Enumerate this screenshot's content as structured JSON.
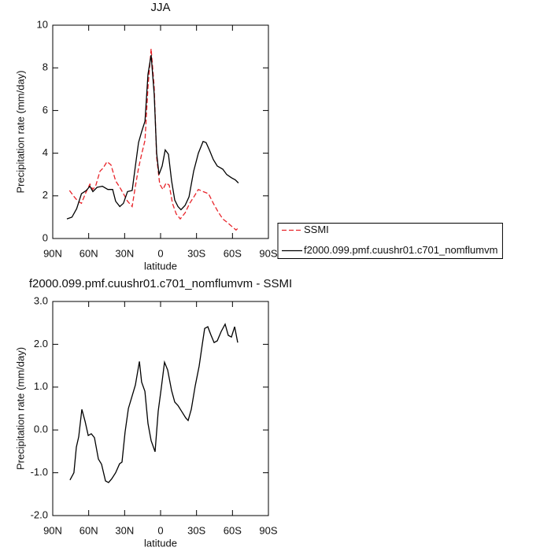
{
  "chart_data": [
    {
      "type": "line",
      "title": "JJA",
      "x_label": "latitude",
      "y_label": "Precipitation rate (mm/day)",
      "xlim": [
        90,
        -90
      ],
      "xticks": [
        {
          "value": 90,
          "label": "90N"
        },
        {
          "value": 60,
          "label": "60N"
        },
        {
          "value": 30,
          "label": "30N"
        },
        0,
        {
          "value": -30,
          "label": "30S"
        },
        {
          "value": -60,
          "label": "60S"
        },
        {
          "value": -90,
          "label": "90S"
        }
      ],
      "ylim": [
        0,
        10
      ],
      "yticks": [
        0,
        2,
        4,
        6,
        8,
        10
      ],
      "legend": "right",
      "series": [
        {
          "name": "SSMI",
          "color": "#e8242a",
          "dash": true,
          "x": [
            76,
            72,
            69,
            66,
            62.4,
            59,
            56.5,
            54,
            50.6,
            48,
            44.7,
            41.4,
            37.5,
            34,
            31,
            27.6,
            23.7,
            21,
            18.4,
            15.8,
            13,
            10.5,
            7.9,
            5.3,
            3.3,
            0.7,
            -2,
            -4.6,
            -7.2,
            -9.9,
            -13.1,
            -16.4,
            -20.4,
            -24.3,
            -28.3,
            -31.5,
            -35.5,
            -40,
            -44,
            -48,
            -51.9,
            -55.8,
            -59.8,
            -63,
            -65
          ],
          "values": [
            2.25,
            1.95,
            1.75,
            1.65,
            2.15,
            2.55,
            2.3,
            2.5,
            3.15,
            3.3,
            3.6,
            3.45,
            2.7,
            2.4,
            2.1,
            1.75,
            1.5,
            2.45,
            3.3,
            3.95,
            4.6,
            7.1,
            8.9,
            7.1,
            3.8,
            2.55,
            2.3,
            2.6,
            2.5,
            1.65,
            1.15,
            0.92,
            1.2,
            1.65,
            2.0,
            2.3,
            2.2,
            2.1,
            1.65,
            1.25,
            0.92,
            0.75,
            0.55,
            0.4,
            0.5
          ]
        },
        {
          "name": "f2000.099.pmf.cuushr01.c701_nomflumvm",
          "color": "#000000",
          "dash": false,
          "x": [
            78.2,
            74,
            70,
            66,
            62,
            59,
            56.5,
            53,
            48.6,
            44,
            40,
            37.5,
            34,
            31,
            27.6,
            23.7,
            21,
            18.4,
            15.8,
            13,
            10.5,
            7.9,
            5.3,
            3.3,
            1.3,
            -1.3,
            -3.9,
            -6.6,
            -9.2,
            -11.8,
            -14.5,
            -17,
            -20.4,
            -23.7,
            -27.6,
            -31.5,
            -35.5,
            -38,
            -40.7,
            -44,
            -47.3,
            -51.9,
            -55.2,
            -59.1,
            -62.4,
            -65
          ],
          "values": [
            0.92,
            1.0,
            1.4,
            2.1,
            2.25,
            2.45,
            2.2,
            2.4,
            2.45,
            2.3,
            2.3,
            1.75,
            1.5,
            1.65,
            2.2,
            2.25,
            3.4,
            4.5,
            5.0,
            5.5,
            7.7,
            8.6,
            6.75,
            4.0,
            3.0,
            3.4,
            4.15,
            3.95,
            2.7,
            1.8,
            1.5,
            1.35,
            1.55,
            1.95,
            3.15,
            4.0,
            4.55,
            4.5,
            4.15,
            3.7,
            3.4,
            3.25,
            3.0,
            2.85,
            2.75,
            2.6
          ]
        }
      ]
    },
    {
      "type": "line",
      "title": "f2000.099.pmf.cuushr01.c701_nomflumvm - SSMI",
      "x_label": "latitude",
      "y_label": "Precipitation rate (mm/day)",
      "xlim": [
        90,
        -90
      ],
      "xticks": [
        {
          "value": 90,
          "label": "90N"
        },
        {
          "value": 60,
          "label": "60N"
        },
        {
          "value": 30,
          "label": "30N"
        },
        0,
        {
          "value": -30,
          "label": "30S"
        },
        {
          "value": -60,
          "label": "60S"
        },
        {
          "value": -90,
          "label": "90S"
        }
      ],
      "ylim": [
        -2,
        3
      ],
      "yticks": [
        {
          "value": -2,
          "label": "-2.0"
        },
        {
          "value": -1,
          "label": "-1.0"
        },
        {
          "value": 0,
          "label": "0.0"
        },
        {
          "value": 1,
          "label": "1.0"
        },
        {
          "value": 2,
          "label": "2.0"
        },
        {
          "value": 3,
          "label": "3.0"
        }
      ],
      "series": [
        {
          "color": "#000000",
          "dash": false,
          "x": [
            75.6,
            72.3,
            70.3,
            68.3,
            65.7,
            63,
            60.4,
            57.8,
            55.2,
            51.9,
            49.3,
            46,
            43.4,
            40.7,
            37.5,
            34.2,
            32.2,
            29.6,
            26.9,
            24.3,
            21,
            17.7,
            15.8,
            13.1,
            10.5,
            7.9,
            4.6,
            2,
            -0.7,
            -3.3,
            -5.9,
            -9.2,
            -11.8,
            -14.5,
            -17.7,
            -21,
            -23,
            -25.6,
            -28.9,
            -32.2,
            -34.8,
            -36.8,
            -39.4,
            -42,
            -44.7,
            -47.3,
            -50.6,
            -53.9,
            -56.5,
            -59.1,
            -61.8,
            -64.4
          ],
          "values": [
            -1.17,
            -1.0,
            -0.4,
            -0.16,
            0.48,
            0.2,
            -0.13,
            -0.09,
            -0.18,
            -0.68,
            -0.8,
            -1.19,
            -1.23,
            -1.14,
            -1.0,
            -0.79,
            -0.75,
            -0.05,
            0.5,
            0.74,
            1.05,
            1.6,
            1.12,
            0.9,
            0.15,
            -0.25,
            -0.51,
            0.44,
            1.01,
            1.58,
            1.4,
            0.92,
            0.65,
            0.57,
            0.43,
            0.28,
            0.22,
            0.48,
            1.03,
            1.49,
            2.0,
            2.37,
            2.41,
            2.22,
            2.04,
            2.08,
            2.3,
            2.47,
            2.21,
            2.17,
            2.41,
            2.04
          ]
        }
      ]
    }
  ]
}
